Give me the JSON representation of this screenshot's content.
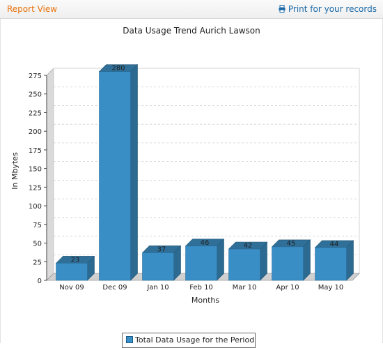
{
  "header": {
    "title": "Report View",
    "print_label": "Print for your records",
    "print_icon": "printer-icon"
  },
  "chart_data": {
    "type": "bar",
    "title": "Data Usage Trend Aurich Lawson",
    "xlabel": "Months",
    "ylabel": "In Mbytes",
    "categories": [
      "Nov 09",
      "Dec 09",
      "Jan 10",
      "Feb 10",
      "Mar 10",
      "Apr 10",
      "May 10"
    ],
    "series": [
      {
        "name": "Total Data Usage for the Period",
        "values": [
          23,
          280,
          37,
          46,
          42,
          45,
          44
        ]
      }
    ],
    "ylim": [
      0,
      275
    ],
    "yticks": [
      0,
      25,
      50,
      75,
      100,
      125,
      150,
      175,
      200,
      225,
      250,
      275
    ],
    "grid": true,
    "legend_position": "bottom",
    "colors": {
      "bar_front": "#3a8ec6",
      "bar_top": "#2f6f98",
      "bar_side": "#2c6a92"
    }
  }
}
